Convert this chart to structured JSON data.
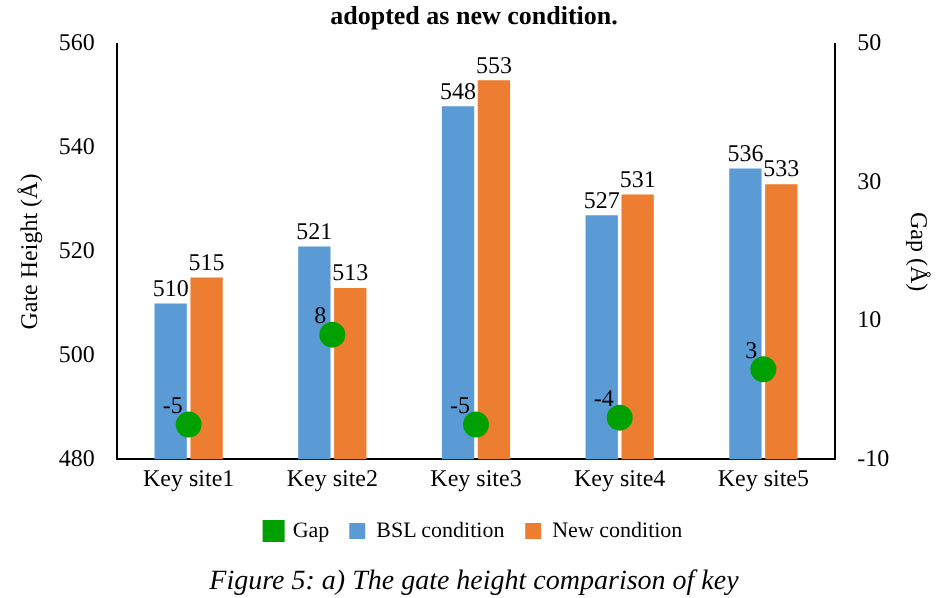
{
  "chart_data": {
    "type": "bar",
    "categories": [
      "Key site1",
      "Key site2",
      "Key site3",
      "Key site4",
      "Key site5"
    ],
    "series": [
      {
        "name": "BSL condition",
        "color": "#5b9bd5",
        "values": [
          510,
          521,
          548,
          527,
          536
        ]
      },
      {
        "name": "New condition",
        "color": "#ed7d31",
        "values": [
          515,
          513,
          553,
          531,
          533
        ]
      },
      {
        "name": "Gap",
        "type": "scatter",
        "color": "#00a000",
        "axis": "y2",
        "values": [
          -5,
          8,
          -5,
          -4,
          3
        ]
      }
    ],
    "ylabel": "Gate Height (Å)",
    "y2label": "Gap (Å)",
    "ylim": [
      480,
      560
    ],
    "yticks": [
      480,
      500,
      520,
      540,
      560
    ],
    "y2lim": [
      -10,
      50
    ],
    "y2ticks": [
      -10,
      10,
      30,
      50
    ],
    "data_labels": true,
    "grid": false,
    "legend": "bottom",
    "marker": "circle",
    "annotations": [
      "adopted as new condition.",
      "Figure 5: a) The gate height comparison of key"
    ]
  }
}
